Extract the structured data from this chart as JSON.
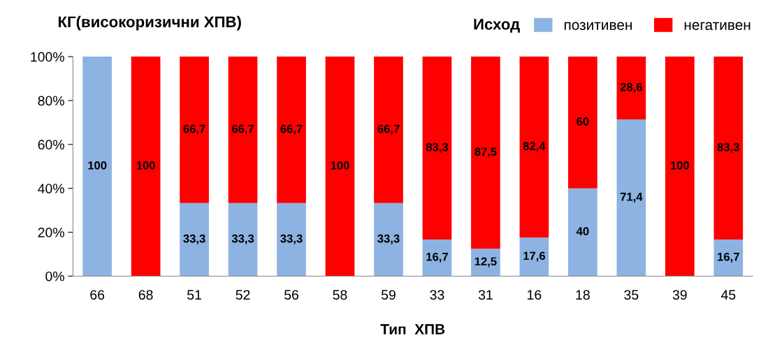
{
  "chart_data": {
    "type": "bar",
    "stacked": true,
    "title": "КГ(високоризични ХПВ)",
    "xlabel": "Тип  ХПВ",
    "legend_title": "Исход",
    "legend": "top right",
    "grid": false,
    "categories": [
      "66",
      "68",
      "51",
      "52",
      "56",
      "58",
      "59",
      "33",
      "31",
      "16",
      "18",
      "35",
      "39",
      "45"
    ],
    "ylim": [
      0,
      100
    ],
    "yticks": [
      {
        "value": 0,
        "label": "0%"
      },
      {
        "value": 20,
        "label": "20%"
      },
      {
        "value": 40,
        "label": "40%"
      },
      {
        "value": 60,
        "label": "60%"
      },
      {
        "value": 80,
        "label": "80%"
      },
      {
        "value": 100,
        "label": "100%"
      }
    ],
    "series": [
      {
        "name": "позитивен",
        "color": "#8db3e2",
        "values": [
          100,
          0,
          33.3,
          33.3,
          33.3,
          0,
          33.3,
          16.7,
          12.5,
          17.6,
          40,
          71.4,
          0,
          16.7
        ],
        "value_labels": [
          "100",
          null,
          "33,3",
          "33,3",
          "33,3",
          null,
          "33,3",
          "16,7",
          "12,5",
          "17,6",
          "40",
          "71,4",
          null,
          "16,7"
        ]
      },
      {
        "name": "негативен",
        "color": "#ff0000",
        "values": [
          0,
          100,
          66.7,
          66.7,
          66.7,
          100,
          66.7,
          83.3,
          87.5,
          82.4,
          60,
          28.6,
          100,
          83.3
        ],
        "value_labels": [
          null,
          "100",
          "66,7",
          "66,7",
          "66,7",
          "100",
          "66,7",
          "83,3",
          "87,5",
          "82,4",
          "60",
          "28,6",
          "100",
          "83,3"
        ]
      }
    ]
  }
}
